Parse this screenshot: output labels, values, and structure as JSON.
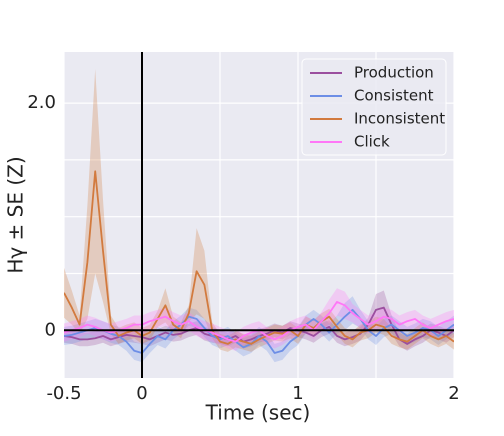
{
  "chart_data": {
    "type": "line",
    "xlabel": "Time (sec)",
    "ylabel": "Hγ ± SE (Z)",
    "xlim": [
      -0.5,
      2
    ],
    "ylim": [
      -0.42,
      2.45
    ],
    "xticks": [
      {
        "value": -0.5,
        "label": "-0.5"
      },
      0,
      1,
      2
    ],
    "yticks": [
      0,
      {
        "value": 2,
        "label": "2.0"
      }
    ],
    "minor_xticks": [
      0.5,
      1.5
    ],
    "minor_yticks": [
      0.5,
      1,
      1.5
    ],
    "vlines": [
      0
    ],
    "hlines": [
      0
    ],
    "grid": true,
    "legend": "upper right",
    "x": [
      -0.5,
      -0.45,
      -0.4,
      -0.35,
      -0.3,
      -0.25,
      -0.2,
      -0.15,
      -0.1,
      -0.05,
      0,
      0.05,
      0.1,
      0.15,
      0.2,
      0.25,
      0.3,
      0.35,
      0.4,
      0.45,
      0.5,
      0.55,
      0.6,
      0.65,
      0.7,
      0.75,
      0.8,
      0.85,
      0.9,
      0.95,
      1,
      1.05,
      1.1,
      1.15,
      1.2,
      1.25,
      1.3,
      1.35,
      1.4,
      1.45,
      1.5,
      1.55,
      1.6,
      1.65,
      1.7,
      1.75,
      1.8,
      1.85,
      1.9,
      1.95,
      2
    ],
    "series": [
      {
        "name": "Production",
        "color": "#9b4f9f",
        "values": [
          -0.05,
          -0.06,
          -0.08,
          -0.08,
          -0.07,
          -0.05,
          -0.08,
          -0.06,
          -0.04,
          -0.05,
          -0.06,
          -0.08,
          -0.05,
          -0.02,
          -0.04,
          -0.03,
          0.0,
          0.02,
          -0.03,
          -0.05,
          -0.06,
          -0.08,
          -0.05,
          -0.1,
          -0.08,
          -0.05,
          -0.03,
          0.0,
          -0.02,
          0.02,
          0.0,
          -0.02,
          -0.05,
          0.0,
          0.03,
          -0.05,
          -0.08,
          -0.06,
          -0.03,
          0.05,
          0.18,
          0.2,
          0.05,
          -0.08,
          -0.12,
          -0.08,
          -0.05,
          0.0,
          -0.02,
          -0.05,
          0.0
        ],
        "errors": [
          0.06,
          0.06,
          0.06,
          0.06,
          0.06,
          0.06,
          0.06,
          0.06,
          0.06,
          0.06,
          0.06,
          0.06,
          0.06,
          0.06,
          0.06,
          0.06,
          0.06,
          0.06,
          0.06,
          0.06,
          0.06,
          0.06,
          0.06,
          0.06,
          0.06,
          0.06,
          0.06,
          0.06,
          0.06,
          0.06,
          0.06,
          0.06,
          0.06,
          0.06,
          0.06,
          0.06,
          0.06,
          0.06,
          0.06,
          0.06,
          0.14,
          0.15,
          0.08,
          0.06,
          0.06,
          0.06,
          0.06,
          0.06,
          0.06,
          0.06,
          0.06
        ]
      },
      {
        "name": "Consistent",
        "color": "#6d8ee6",
        "values": [
          -0.05,
          -0.04,
          -0.02,
          0.0,
          0.02,
          0.0,
          -0.03,
          -0.05,
          -0.1,
          -0.18,
          -0.2,
          -0.12,
          -0.05,
          -0.08,
          0.0,
          0.05,
          0.12,
          0.1,
          0.02,
          -0.05,
          -0.08,
          -0.05,
          -0.1,
          -0.15,
          -0.12,
          -0.05,
          -0.1,
          -0.2,
          -0.18,
          -0.1,
          -0.05,
          0.05,
          0.1,
          0.05,
          -0.02,
          0.05,
          0.12,
          0.18,
          0.1,
          0.0,
          -0.05,
          0.02,
          0.05,
          0.0,
          -0.05,
          -0.02,
          0.02,
          0.0,
          -0.05,
          0.0,
          0.05
        ],
        "errors": [
          0.08,
          0.08,
          0.08,
          0.08,
          0.08,
          0.08,
          0.08,
          0.08,
          0.08,
          0.08,
          0.08,
          0.08,
          0.08,
          0.08,
          0.08,
          0.08,
          0.08,
          0.08,
          0.08,
          0.08,
          0.08,
          0.08,
          0.08,
          0.08,
          0.08,
          0.08,
          0.08,
          0.08,
          0.08,
          0.08,
          0.08,
          0.08,
          0.08,
          0.08,
          0.08,
          0.08,
          0.12,
          0.12,
          0.08,
          0.08,
          0.08,
          0.08,
          0.08,
          0.08,
          0.08,
          0.08,
          0.08,
          0.08,
          0.08,
          0.08,
          0.08
        ]
      },
      {
        "name": "Inconsistent",
        "color": "#d27a3e",
        "values": [
          0.33,
          0.2,
          0.05,
          0.6,
          1.4,
          0.7,
          0.05,
          -0.05,
          -0.02,
          0.0,
          -0.05,
          -0.02,
          0.1,
          0.22,
          0.05,
          0.0,
          0.15,
          0.52,
          0.4,
          0.0,
          -0.1,
          -0.12,
          -0.08,
          -0.1,
          -0.12,
          -0.08,
          -0.05,
          -0.02,
          -0.03,
          0.0,
          -0.05,
          0.05,
          0.02,
          0.08,
          0.12,
          0.03,
          -0.05,
          -0.08,
          -0.02,
          0.0,
          0.05,
          0.03,
          -0.05,
          -0.08,
          -0.1,
          -0.05,
          0.0,
          -0.05,
          -0.08,
          -0.05,
          -0.1
        ],
        "errors": [
          0.22,
          0.15,
          0.08,
          0.5,
          0.9,
          0.45,
          0.08,
          0.07,
          0.07,
          0.07,
          0.07,
          0.07,
          0.07,
          0.15,
          0.07,
          0.07,
          0.07,
          0.38,
          0.3,
          0.07,
          0.07,
          0.07,
          0.07,
          0.07,
          0.07,
          0.07,
          0.07,
          0.07,
          0.07,
          0.07,
          0.07,
          0.07,
          0.07,
          0.07,
          0.07,
          0.07,
          0.07,
          0.07,
          0.07,
          0.07,
          0.07,
          0.07,
          0.07,
          0.07,
          0.07,
          0.07,
          0.07,
          0.07,
          0.07,
          0.07,
          0.07
        ]
      },
      {
        "name": "Click",
        "color": "#ff77f7",
        "values": [
          -0.02,
          0.0,
          0.02,
          0.05,
          0.03,
          0.0,
          -0.02,
          0.0,
          0.02,
          0.05,
          0.05,
          0.08,
          0.1,
          0.12,
          0.08,
          0.05,
          0.08,
          0.03,
          0.0,
          -0.02,
          -0.05,
          -0.08,
          -0.1,
          -0.05,
          -0.02,
          0.0,
          -0.05,
          -0.08,
          -0.05,
          0.0,
          0.03,
          0.05,
          0.0,
          0.08,
          0.15,
          0.25,
          0.22,
          0.15,
          0.1,
          0.05,
          0.08,
          0.12,
          0.1,
          0.05,
          0.08,
          0.1,
          0.05,
          0.02,
          0.05,
          0.08,
          0.1
        ],
        "errors": [
          0.08,
          0.08,
          0.08,
          0.08,
          0.08,
          0.08,
          0.08,
          0.08,
          0.08,
          0.08,
          0.08,
          0.08,
          0.08,
          0.08,
          0.08,
          0.08,
          0.08,
          0.08,
          0.08,
          0.08,
          0.08,
          0.08,
          0.08,
          0.08,
          0.08,
          0.08,
          0.08,
          0.08,
          0.08,
          0.08,
          0.08,
          0.08,
          0.08,
          0.08,
          0.12,
          0.12,
          0.12,
          0.08,
          0.08,
          0.08,
          0.08,
          0.08,
          0.08,
          0.08,
          0.08,
          0.08,
          0.08,
          0.08,
          0.08,
          0.08,
          0.08
        ]
      }
    ]
  }
}
